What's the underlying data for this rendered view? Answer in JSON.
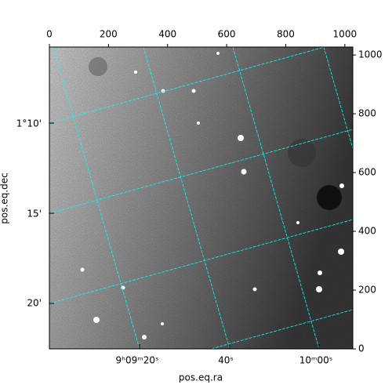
{
  "chart_data": {
    "type": "image",
    "xlabel": "pos.eq.ra",
    "ylabel": "pos.eq.dec",
    "xlim": [
      0,
      1027
    ],
    "ylim": [
      0,
      1027
    ],
    "xticks": [
      0,
      200,
      400,
      600,
      800,
      1000
    ],
    "yticks": [
      0,
      200,
      400,
      600,
      800,
      1000
    ],
    "ra_ticks": [
      "9ʰ09ᵐ20ˢ",
      "40ˢ",
      "10ᵐ00ˢ"
    ],
    "dec_ticks": [
      "1°10'",
      "15'",
      "20'"
    ],
    "grid_color": "#00ffff"
  }
}
